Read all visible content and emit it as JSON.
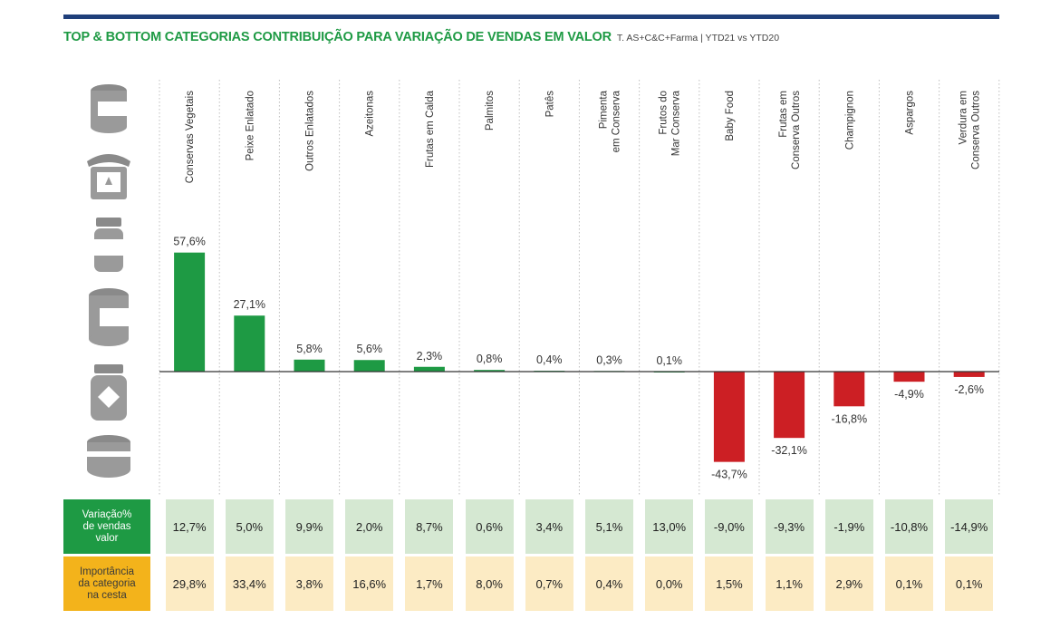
{
  "title": "TOP & BOTTOM CATEGORIAS CONTRIBUIÇÃO PARA VARIAÇÃO DE VENDAS EM VALOR",
  "subtitle": "T. AS+C&C+Farma | YTD21 vs YTD20",
  "icons": [
    "can-icon",
    "jam-jar-icon",
    "baby-food-jar-icon",
    "tall-can-icon",
    "preserve-jar-icon",
    "round-tin-icon"
  ],
  "colors": {
    "positive": "#1e9a44",
    "negative": "#cc1f24",
    "header_bar": "#1f3f7a"
  },
  "chart_data": {
    "type": "bar",
    "categories": [
      "Conservas Vegetais",
      "Peixe Enlatado",
      "Outros Enlatados",
      "Azeitonas",
      "Frutas em Calda",
      "Palmitos",
      "Patês",
      "Pimenta\nem Conserva",
      "Frutos do\nMar Conserva",
      "Baby Food",
      "Frutas em\nConserva Outros",
      "Champignon",
      "Aspargos",
      "Verdura em\nConserva Outros"
    ],
    "values": [
      57.6,
      27.1,
      5.8,
      5.6,
      2.3,
      0.8,
      0.4,
      0.3,
      0.1,
      -43.7,
      -32.1,
      -16.8,
      -4.9,
      -2.6
    ],
    "value_labels": [
      "57,6%",
      "27,1%",
      "5,8%",
      "5,6%",
      "2,3%",
      "0,8%",
      "0,4%",
      "0,3%",
      "0,1%",
      "-43,7%",
      "-32,1%",
      "-16,8%",
      "-4,9%",
      "-2,6%"
    ],
    "ylim": [
      -50,
      65
    ],
    "grid": "vertical-dotted"
  },
  "table": {
    "variacao_label": "Variação%\nde vendas\nvalor",
    "variacao": [
      "12,7%",
      "5,0%",
      "9,9%",
      "2,0%",
      "8,7%",
      "0,6%",
      "3,4%",
      "5,1%",
      "13,0%",
      "-9,0%",
      "-9,3%",
      "-1,9%",
      "-10,8%",
      "-14,9%"
    ],
    "importancia_label": "Importância\nda categoria\nna cesta",
    "importancia": [
      "29,8%",
      "33,4%",
      "3,8%",
      "16,6%",
      "1,7%",
      "8,0%",
      "0,7%",
      "0,4%",
      "0,0%",
      "1,5%",
      "1,1%",
      "2,9%",
      "0,1%",
      "0,1%"
    ]
  }
}
